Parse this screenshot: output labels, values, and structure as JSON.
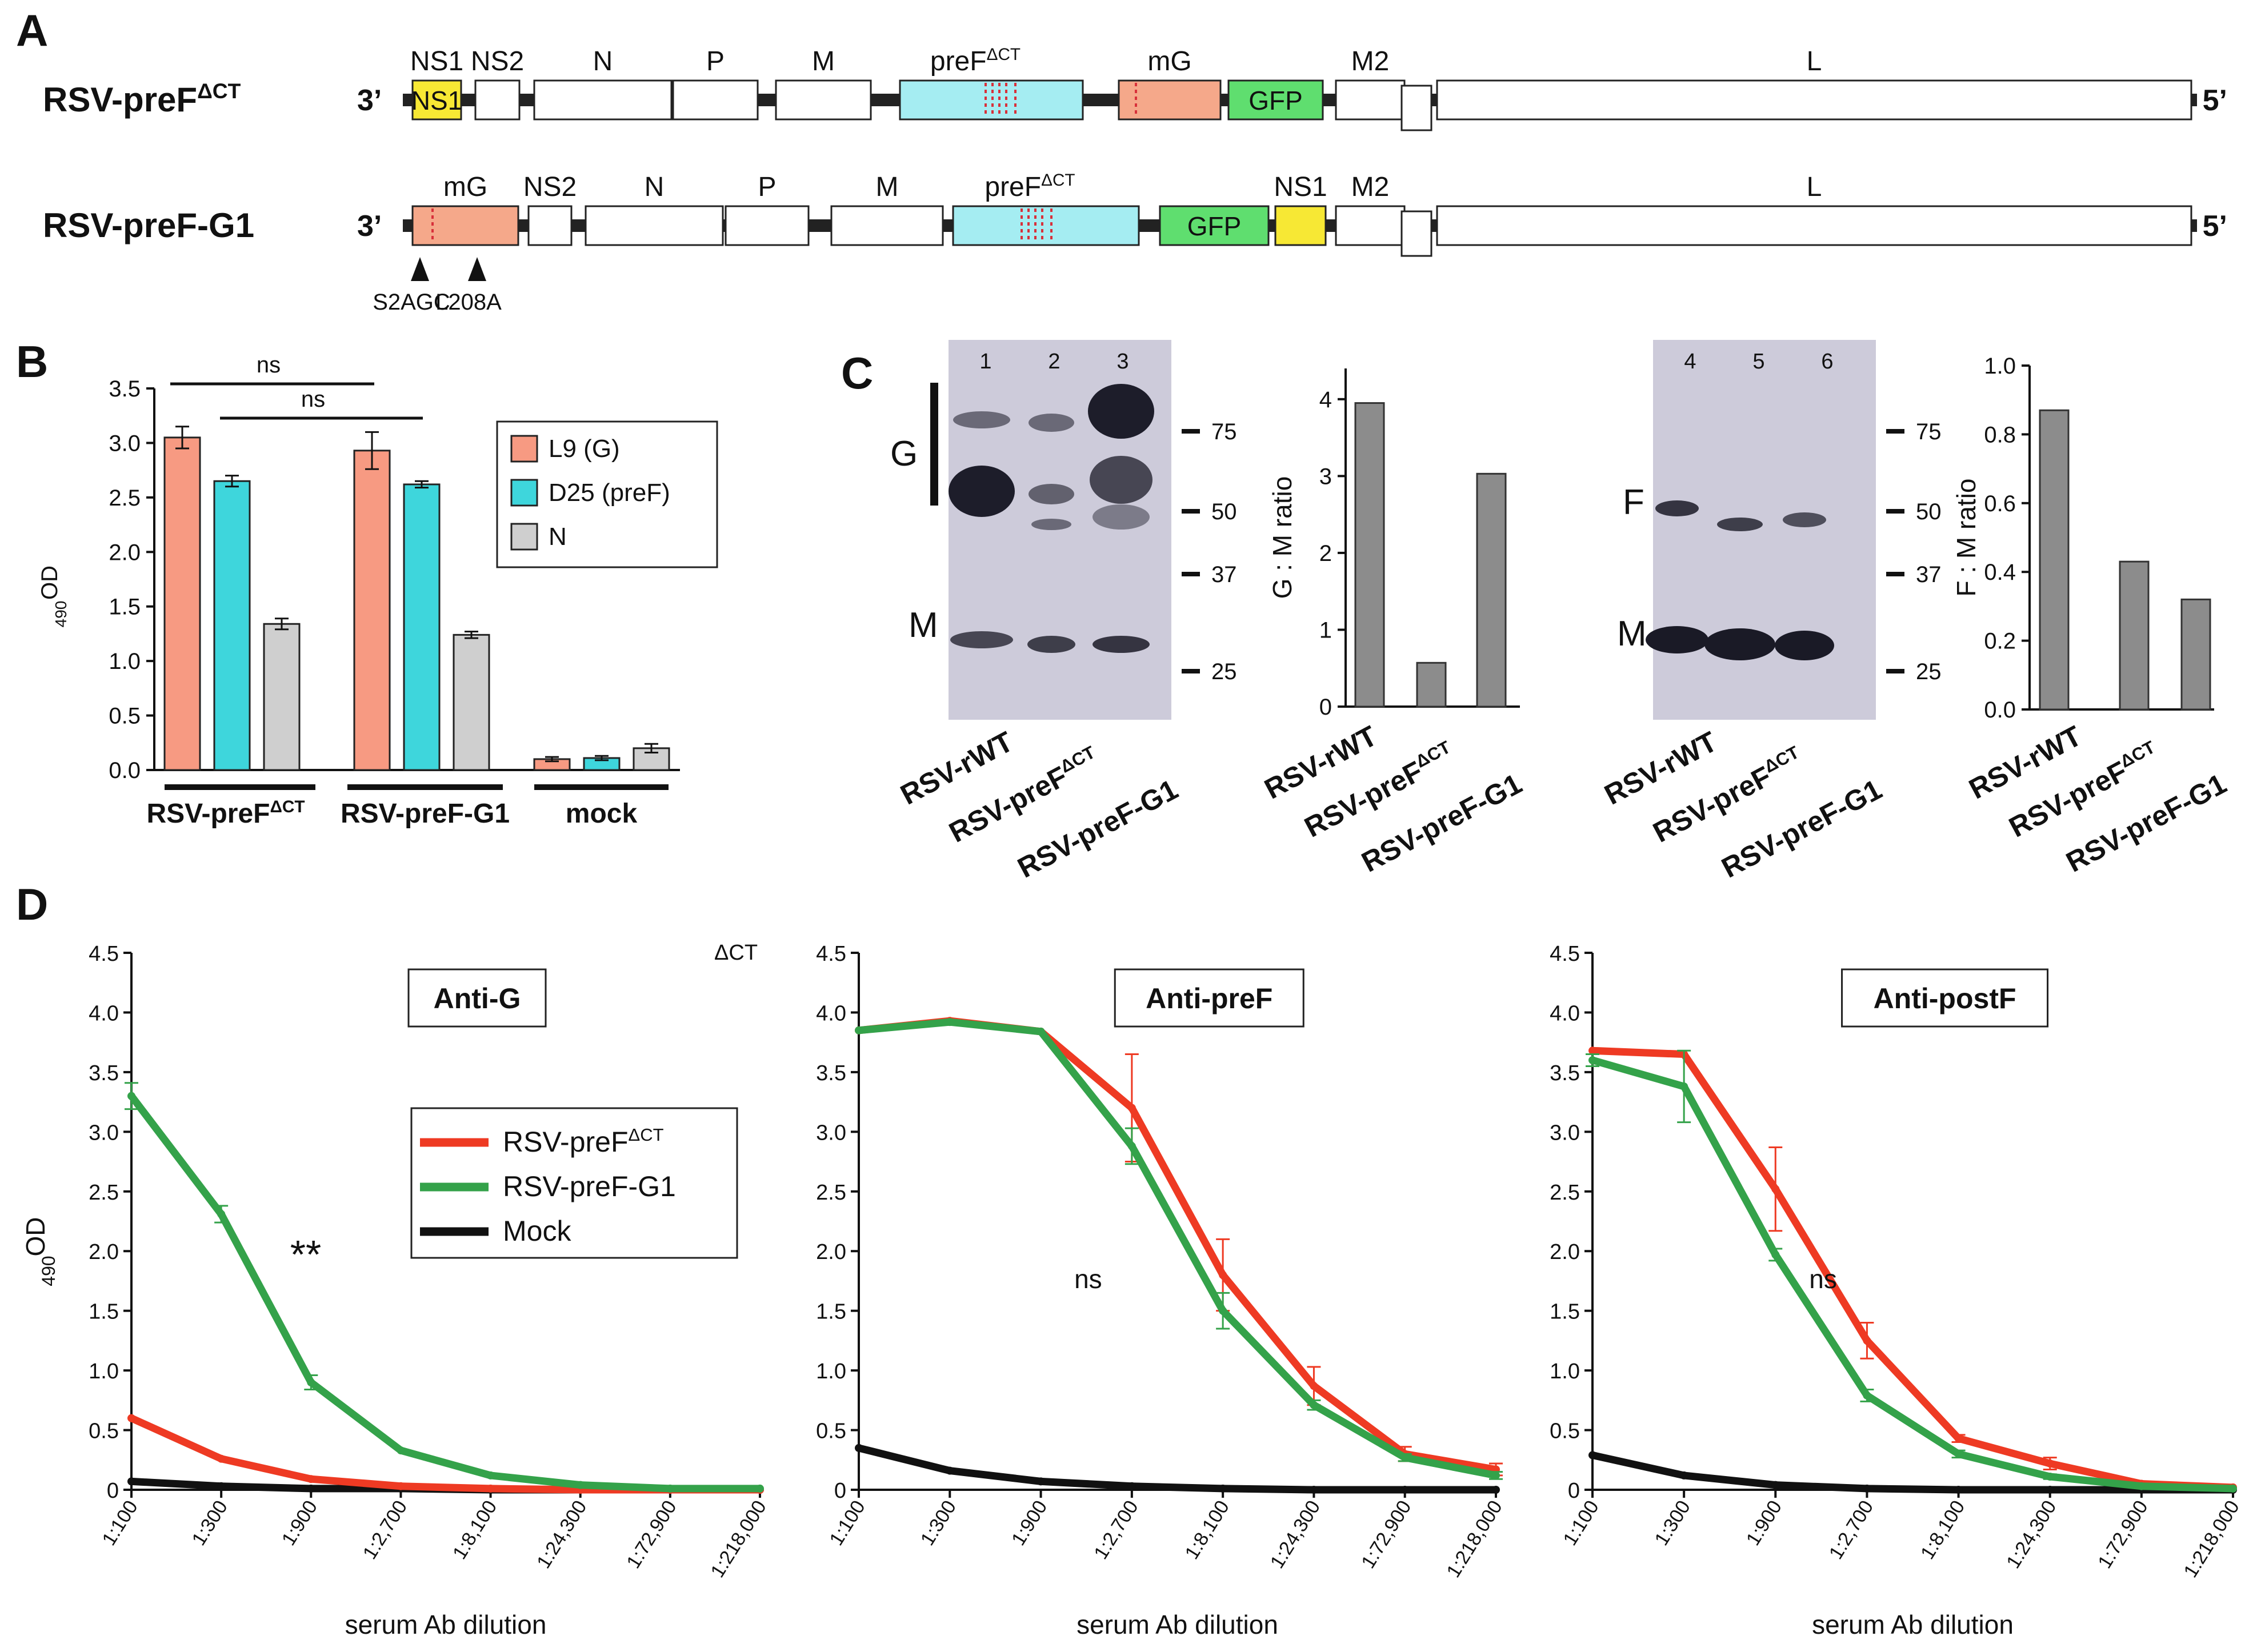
{
  "panel_letters": {
    "a": "A",
    "b": "B",
    "c": "C",
    "d": "D"
  },
  "colors": {
    "ns1": "#f7e834",
    "ns1_border": "#444444",
    "mg": "#f5a88a",
    "pref": "#a5edf2",
    "gfp": "#5fde6f",
    "bar_g": "#f79a82",
    "bar_pref": "#3ed6dc",
    "bar_n": "#cfcfcf",
    "wb_bar": "#8c8c8c",
    "red": "#ee3a23",
    "green": "#34a24a",
    "black": "#111111",
    "blot_bg": "#cdcbda",
    "blot_band": "#1a1a26"
  },
  "panel_a": {
    "construct1": {
      "name": "RSV-preF",
      "sup": "ΔCT",
      "end3": "3’",
      "end5": "5’",
      "genes": [
        {
          "label": "NS1",
          "box": "NS1"
        },
        {
          "label": "NS2"
        },
        {
          "label": "N"
        },
        {
          "label": "P"
        },
        {
          "label": "M"
        },
        {
          "label": "preF",
          "sup": "ΔCT"
        },
        {
          "label": "mG"
        },
        {
          "label": "",
          "box": "GFP"
        },
        {
          "label": "M2"
        },
        {
          "label": "L"
        }
      ]
    },
    "construct2": {
      "name": "RSV-preF-G1",
      "end3": "3’",
      "end5": "5’",
      "genes": [
        {
          "label": "mG"
        },
        {
          "label": "NS2"
        },
        {
          "label": "N"
        },
        {
          "label": "P"
        },
        {
          "label": "M"
        },
        {
          "label": "preF",
          "sup": "ΔCT"
        },
        {
          "label": "",
          "box": "GFP"
        },
        {
          "label": "NS1"
        },
        {
          "label": "M2"
        },
        {
          "label": "L"
        }
      ],
      "mutations": [
        "S2AGC",
        "L208A"
      ]
    }
  },
  "chart_data": [
    {
      "id": "B",
      "type": "bar",
      "ylabel": "OD",
      "ylabel_sub": "490",
      "ylim": [
        0,
        3.5
      ],
      "yticks": [
        "0.0",
        "0.5",
        "1.0",
        "1.5",
        "2.0",
        "2.5",
        "3.0",
        "3.5"
      ],
      "groups": [
        {
          "name": "RSV-preF",
          "sup": "ΔCT"
        },
        {
          "name": "RSV-preF-G1",
          "sup": ""
        },
        {
          "name": "mock",
          "sup": ""
        }
      ],
      "series": [
        {
          "name": "L9 (G)",
          "values": [
            3.05,
            2.93,
            0.1
          ],
          "errors": [
            0.1,
            0.17,
            0.02
          ]
        },
        {
          "name": "D25 (preF)",
          "values": [
            2.65,
            2.62,
            0.11
          ],
          "errors": [
            0.05,
            0.03,
            0.02
          ]
        },
        {
          "name": "N",
          "values": [
            1.34,
            1.24,
            0.2
          ],
          "errors": [
            0.05,
            0.03,
            0.04
          ]
        }
      ],
      "annotations": [
        "ns",
        "ns"
      ]
    },
    {
      "id": "C-G",
      "type": "bar",
      "ylabel": "G : M ratio",
      "ylim": [
        0,
        4.4
      ],
      "yticks": [
        "0",
        "1",
        "2",
        "3",
        "4"
      ],
      "categories": [
        {
          "name": "RSV-rWT",
          "sup": ""
        },
        {
          "name": "RSV-preF",
          "sup": "ΔCT"
        },
        {
          "name": "RSV-preF-G1",
          "sup": ""
        }
      ],
      "values": [
        3.95,
        0.57,
        3.03
      ]
    },
    {
      "id": "C-F",
      "type": "bar",
      "ylabel": "F : M ratio",
      "ylim": [
        0,
        1.0
      ],
      "yticks": [
        "0.0",
        "0.2",
        "0.4",
        "0.6",
        "0.8",
        "1.0"
      ],
      "categories": [
        {
          "name": "RSV-rWT",
          "sup": ""
        },
        {
          "name": "RSV-preF",
          "sup": "ΔCT"
        },
        {
          "name": "RSV-preF-G1",
          "sup": ""
        }
      ],
      "values": [
        0.87,
        0.43,
        0.32
      ]
    },
    {
      "id": "D-G",
      "type": "line",
      "title": "Anti-G",
      "xlabel": "serum Ab dilution",
      "ylabel": "OD",
      "ylabel_sub": "490",
      "ylim": [
        0,
        4.5
      ],
      "yticks": [
        "0",
        "0.5",
        "1.0",
        "1.5",
        "2.0",
        "2.5",
        "3.0",
        "3.5",
        "4.0",
        "4.5"
      ],
      "x": [
        "1:100",
        "1:300",
        "1:900",
        "1:2,700",
        "1:8,100",
        "1:24,300",
        "1:72,900",
        "1:218,000"
      ],
      "series": [
        {
          "name": "RSV-preF",
          "sup": "ΔCT",
          "values": [
            0.6,
            0.26,
            0.09,
            0.03,
            0.01,
            0.0,
            0.0,
            0.0
          ],
          "errors": [
            0,
            0,
            0,
            0,
            0,
            0,
            0,
            0
          ]
        },
        {
          "name": "RSV-preF-G1",
          "sup": "",
          "values": [
            3.3,
            2.31,
            0.9,
            0.33,
            0.12,
            0.04,
            0.01,
            0.01
          ],
          "errors": [
            0.11,
            0.07,
            0.06,
            0,
            0,
            0,
            0,
            0
          ]
        },
        {
          "name": "Mock",
          "sup": "",
          "values": [
            0.07,
            0.03,
            0.01,
            0.01,
            0.0,
            0.0,
            0.0,
            0.0
          ],
          "errors": [
            0,
            0,
            0,
            0,
            0,
            0,
            0,
            0
          ]
        }
      ],
      "annotation": "**",
      "stray_label": "ΔCT"
    },
    {
      "id": "D-preF",
      "type": "line",
      "title": "Anti-preF",
      "xlabel": "serum Ab dilution",
      "ylim": [
        0,
        4.5
      ],
      "yticks": [
        "0",
        "0.5",
        "1.0",
        "1.5",
        "2.0",
        "2.5",
        "3.0",
        "3.5",
        "4.0",
        "4.5"
      ],
      "x": [
        "1:100",
        "1:300",
        "1:900",
        "1:2,700",
        "1:8,100",
        "1:24,300",
        "1:72,900",
        "1:218,000"
      ],
      "series": [
        {
          "name": "RSV-preF",
          "sup": "ΔCT",
          "values": [
            3.85,
            3.93,
            3.84,
            3.2,
            1.8,
            0.87,
            0.3,
            0.17
          ],
          "errors": [
            0,
            0,
            0,
            0.45,
            0.3,
            0.16,
            0.06,
            0.05
          ]
        },
        {
          "name": "RSV-preF-G1",
          "sup": "",
          "values": [
            3.85,
            3.92,
            3.84,
            2.88,
            1.5,
            0.71,
            0.27,
            0.12
          ],
          "errors": [
            0,
            0,
            0,
            0.15,
            0.15,
            0.04,
            0.03,
            0.03
          ]
        },
        {
          "name": "Mock",
          "sup": "",
          "values": [
            0.35,
            0.16,
            0.07,
            0.03,
            0.01,
            0.0,
            0.0,
            0.0
          ],
          "errors": [
            0,
            0,
            0,
            0,
            0,
            0,
            0,
            0
          ]
        }
      ],
      "annotation": "ns"
    },
    {
      "id": "D-postF",
      "type": "line",
      "title": "Anti-postF",
      "xlabel": "serum Ab dilution",
      "ylim": [
        0,
        4.5
      ],
      "yticks": [
        "0",
        "0.5",
        "1.0",
        "1.5",
        "2.0",
        "2.5",
        "3.0",
        "3.5",
        "4.0",
        "4.5"
      ],
      "x": [
        "1:100",
        "1:300",
        "1:900",
        "1:2,700",
        "1:8,100",
        "1:24,300",
        "1:72,900",
        "1:218,000"
      ],
      "series": [
        {
          "name": "RSV-preF",
          "sup": "ΔCT",
          "values": [
            3.68,
            3.65,
            2.52,
            1.25,
            0.43,
            0.22,
            0.05,
            0.02
          ],
          "errors": [
            0,
            0,
            0.35,
            0.15,
            0.03,
            0.05,
            0,
            0
          ]
        },
        {
          "name": "RSV-preF-G1",
          "sup": "",
          "values": [
            3.6,
            3.38,
            1.97,
            0.79,
            0.3,
            0.11,
            0.03,
            0.01
          ],
          "errors": [
            0.05,
            0.3,
            0.05,
            0.05,
            0.03,
            0.02,
            0,
            0
          ]
        },
        {
          "name": "Mock",
          "sup": "",
          "values": [
            0.29,
            0.12,
            0.04,
            0.01,
            0.0,
            0.0,
            0.0,
            0.0
          ],
          "errors": [
            0,
            0,
            0,
            0,
            0,
            0,
            0,
            0
          ]
        }
      ],
      "annotation": "ns"
    }
  ],
  "blots": {
    "left": {
      "lanes": [
        "1",
        "2",
        "3"
      ],
      "markers": [
        "75",
        "50",
        "37",
        "25"
      ],
      "band_labels": [
        "G",
        "M"
      ],
      "sample_labels": [
        {
          "name": "RSV-rWT",
          "sup": ""
        },
        {
          "name": "RSV-preF",
          "sup": "ΔCT"
        },
        {
          "name": "RSV-preF-G1",
          "sup": ""
        }
      ]
    },
    "right": {
      "lanes": [
        "4",
        "5",
        "6"
      ],
      "markers": [
        "75",
        "50",
        "37",
        "25"
      ],
      "band_labels": [
        "F",
        "M"
      ],
      "sample_labels": [
        {
          "name": "RSV-rWT",
          "sup": ""
        },
        {
          "name": "RSV-preF",
          "sup": "ΔCT"
        },
        {
          "name": "RSV-preF-G1",
          "sup": ""
        }
      ]
    }
  }
}
